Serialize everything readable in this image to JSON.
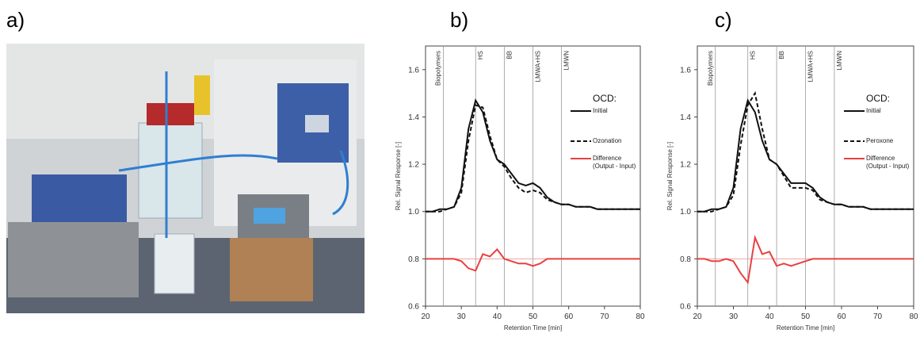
{
  "panel_labels": [
    "a)",
    "b)",
    "c)"
  ],
  "chart_data": [
    {
      "type": "line",
      "xlabel": "Retention Time [min]",
      "ylabel": "Rel. Signal Response [-]",
      "xlim": [
        20,
        80
      ],
      "xticks": [
        20,
        30,
        40,
        50,
        60,
        70,
        80
      ],
      "ylim": [
        0.6,
        1.7
      ],
      "yticks": [
        0.6,
        0.8,
        {
          "value": 1,
          "label": "1.0"
        },
        1.2,
        1.4,
        1.6
      ],
      "legend_title": "OCD:",
      "hline": 0.8,
      "regions": [
        {
          "label": "Biopolymers",
          "x": 25
        },
        {
          "label": "HS",
          "x": 34
        },
        {
          "label": "BB",
          "x": 42
        },
        {
          "label": "LMWA+HS",
          "x": 50
        },
        {
          "label": "LMWN",
          "x": 58
        }
      ],
      "x": [
        20,
        22,
        24,
        26,
        28,
        30,
        32,
        34,
        36,
        38,
        40,
        42,
        44,
        46,
        48,
        50,
        52,
        54,
        56,
        58,
        60,
        62,
        64,
        66,
        68,
        70,
        72,
        74,
        76,
        78,
        80
      ],
      "series": [
        {
          "name": "Initial",
          "color": "#111111",
          "style": "solid",
          "values": [
            1.0,
            1.0,
            1.01,
            1.01,
            1.02,
            1.1,
            1.35,
            1.47,
            1.42,
            1.3,
            1.22,
            1.2,
            1.16,
            1.12,
            1.11,
            1.12,
            1.1,
            1.06,
            1.04,
            1.03,
            1.03,
            1.02,
            1.02,
            1.02,
            1.01,
            1.01,
            1.01,
            1.01,
            1.01,
            1.01,
            1.01
          ]
        },
        {
          "name": "Ozonation",
          "color": "#111111",
          "style": "dashed",
          "values": [
            1.0,
            1.0,
            1.0,
            1.01,
            1.02,
            1.08,
            1.3,
            1.45,
            1.44,
            1.32,
            1.22,
            1.19,
            1.14,
            1.1,
            1.08,
            1.09,
            1.08,
            1.05,
            1.04,
            1.03,
            1.03,
            1.02,
            1.02,
            1.02,
            1.01,
            1.01,
            1.01,
            1.01,
            1.01,
            1.01,
            1.01
          ]
        },
        {
          "name": "Difference (Output - Input)",
          "color": "#e8413f",
          "style": "solid",
          "values": [
            0.8,
            0.8,
            0.8,
            0.8,
            0.8,
            0.79,
            0.76,
            0.75,
            0.82,
            0.81,
            0.84,
            0.8,
            0.79,
            0.78,
            0.78,
            0.77,
            0.78,
            0.8,
            0.8,
            0.8,
            0.8,
            0.8,
            0.8,
            0.8,
            0.8,
            0.8,
            0.8,
            0.8,
            0.8,
            0.8,
            0.8
          ]
        }
      ]
    },
    {
      "type": "line",
      "xlabel": "Retention Time [min]",
      "ylabel": "Rel. Signal Response [-]",
      "xlim": [
        20,
        80
      ],
      "xticks": [
        20,
        30,
        40,
        50,
        60,
        70,
        80
      ],
      "ylim": [
        0.6,
        1.7
      ],
      "yticks": [
        0.6,
        0.8,
        {
          "value": 1,
          "label": "1.0"
        },
        1.2,
        1.4,
        1.6
      ],
      "legend_title": "OCD:",
      "hline": 0.8,
      "regions": [
        {
          "label": "Biopolymers",
          "x": 25
        },
        {
          "label": "HS",
          "x": 34
        },
        {
          "label": "BB",
          "x": 42
        },
        {
          "label": "LMWA+HS",
          "x": 50
        },
        {
          "label": "LMWN",
          "x": 58
        }
      ],
      "x": [
        20,
        22,
        24,
        26,
        28,
        30,
        32,
        34,
        36,
        38,
        40,
        42,
        44,
        46,
        48,
        50,
        52,
        54,
        56,
        58,
        60,
        62,
        64,
        66,
        68,
        70,
        72,
        74,
        76,
        78,
        80
      ],
      "series": [
        {
          "name": "Initial",
          "color": "#111111",
          "style": "solid",
          "values": [
            1.0,
            1.0,
            1.01,
            1.01,
            1.02,
            1.1,
            1.35,
            1.47,
            1.42,
            1.3,
            1.22,
            1.2,
            1.16,
            1.12,
            1.12,
            1.12,
            1.1,
            1.06,
            1.04,
            1.03,
            1.03,
            1.02,
            1.02,
            1.02,
            1.01,
            1.01,
            1.01,
            1.01,
            1.01,
            1.01,
            1.01
          ]
        },
        {
          "name": "Peroxone",
          "color": "#111111",
          "style": "dashed",
          "values": [
            1.0,
            1.0,
            1.0,
            1.01,
            1.02,
            1.07,
            1.28,
            1.45,
            1.5,
            1.35,
            1.22,
            1.2,
            1.15,
            1.1,
            1.1,
            1.1,
            1.09,
            1.05,
            1.04,
            1.03,
            1.03,
            1.02,
            1.02,
            1.02,
            1.01,
            1.01,
            1.01,
            1.01,
            1.01,
            1.01,
            1.01
          ]
        },
        {
          "name": "Difference (Output - Input)",
          "color": "#e8413f",
          "style": "solid",
          "values": [
            0.8,
            0.8,
            0.79,
            0.79,
            0.8,
            0.79,
            0.74,
            0.7,
            0.89,
            0.82,
            0.83,
            0.77,
            0.78,
            0.77,
            0.78,
            0.79,
            0.8,
            0.8,
            0.8,
            0.8,
            0.8,
            0.8,
            0.8,
            0.8,
            0.8,
            0.8,
            0.8,
            0.8,
            0.8,
            0.8,
            0.8
          ]
        }
      ]
    }
  ]
}
